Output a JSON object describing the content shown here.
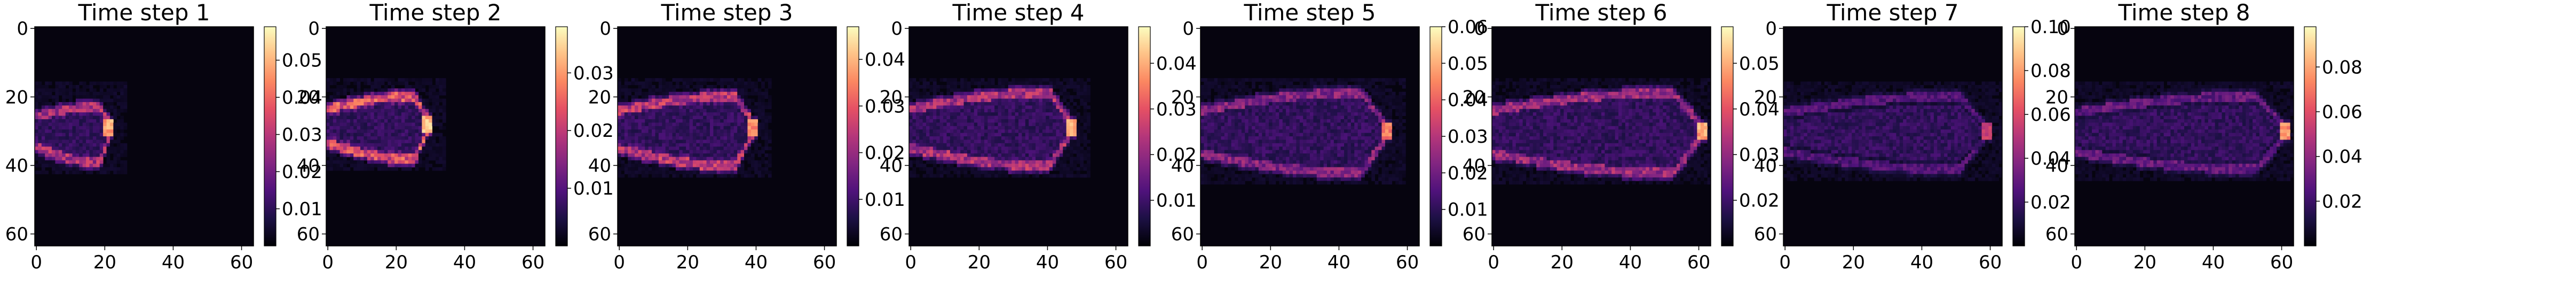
{
  "figure": {
    "colormap": "magma",
    "colormap_stops": [
      "#000004",
      "#1c1044",
      "#4f127b",
      "#812581",
      "#b5367a",
      "#e55064",
      "#fb8761",
      "#fec287",
      "#fcfdbf"
    ]
  },
  "chart_data": [
    {
      "type": "heatmap",
      "title": "Time step 1",
      "x_ticks": [
        "0",
        "20",
        "40",
        "60"
      ],
      "y_ticks": [
        "0",
        "20",
        "40",
        "60"
      ],
      "grid_size": 64,
      "colorbar_ticks": [
        "0.01",
        "0.02",
        "0.03",
        "0.04",
        "0.05"
      ],
      "colorbar_range": [
        0,
        0.059
      ],
      "front": {
        "x0": 0,
        "x1": 22,
        "y": 29,
        "top_half_width": 6,
        "bottom_half_width": 10,
        "intensity": 0.55,
        "tip_intensity": 0.9
      }
    },
    {
      "type": "heatmap",
      "title": "Time step 2",
      "x_ticks": [
        "0",
        "20",
        "40",
        "60"
      ],
      "y_ticks": [
        "0",
        "20",
        "40",
        "60"
      ],
      "grid_size": 64,
      "colorbar_ticks": [
        "0.01",
        "0.02",
        "0.03"
      ],
      "colorbar_range": [
        0,
        0.038
      ],
      "front": {
        "x0": 0,
        "x1": 30,
        "y": 28,
        "top_half_width": 8,
        "bottom_half_width": 10,
        "intensity": 0.7,
        "tip_intensity": 0.95
      }
    },
    {
      "type": "heatmap",
      "title": "Time step 3",
      "x_ticks": [
        "0",
        "20",
        "40",
        "60"
      ],
      "y_ticks": [
        "0",
        "20",
        "40",
        "60"
      ],
      "grid_size": 64,
      "colorbar_ticks": [
        "0.01",
        "0.02",
        "0.03",
        "0.04"
      ],
      "colorbar_range": [
        0,
        0.047
      ],
      "front": {
        "x0": 0,
        "x1": 40,
        "y": 29,
        "top_half_width": 9,
        "bottom_half_width": 11,
        "intensity": 0.6,
        "tip_intensity": 0.85
      }
    },
    {
      "type": "heatmap",
      "title": "Time step 4",
      "x_ticks": [
        "0",
        "20",
        "40",
        "60"
      ],
      "y_ticks": [
        "0",
        "20",
        "40",
        "60"
      ],
      "grid_size": 64,
      "colorbar_ticks": [
        "0.01",
        "0.02",
        "0.03",
        "0.04"
      ],
      "colorbar_range": [
        0,
        0.048
      ],
      "front": {
        "x0": 0,
        "x1": 48,
        "y": 29,
        "top_half_width": 10,
        "bottom_half_width": 11,
        "intensity": 0.55,
        "tip_intensity": 0.9
      }
    },
    {
      "type": "heatmap",
      "title": "Time step 5",
      "x_ticks": [
        "0",
        "20",
        "40",
        "60"
      ],
      "y_ticks": [
        "0",
        "20",
        "40",
        "60"
      ],
      "grid_size": 64,
      "colorbar_ticks": [
        "0.01",
        "0.02",
        "0.03",
        "0.04",
        "0.05",
        "0.06"
      ],
      "colorbar_range": [
        0,
        0.06
      ],
      "front": {
        "x0": 0,
        "x1": 55,
        "y": 30,
        "top_half_width": 11,
        "bottom_half_width": 12,
        "intensity": 0.45,
        "tip_intensity": 0.8
      }
    },
    {
      "type": "heatmap",
      "title": "Time step 6",
      "x_ticks": [
        "0",
        "20",
        "40",
        "60"
      ],
      "y_ticks": [
        "0",
        "20",
        "40",
        "60"
      ],
      "grid_size": 64,
      "colorbar_ticks": [
        "0.02",
        "0.03",
        "0.04",
        "0.05"
      ],
      "colorbar_range": [
        0.01,
        0.058
      ],
      "front": {
        "x0": 0,
        "x1": 62,
        "y": 30,
        "top_half_width": 11,
        "bottom_half_width": 12,
        "intensity": 0.5,
        "tip_intensity": 0.9
      }
    },
    {
      "type": "heatmap",
      "title": "Time step 7",
      "x_ticks": [
        "0",
        "20",
        "40",
        "60"
      ],
      "y_ticks": [
        "0",
        "20",
        "40",
        "60"
      ],
      "grid_size": 64,
      "colorbar_ticks": [
        "0.02",
        "0.04",
        "0.06",
        "0.08",
        "0.10"
      ],
      "colorbar_range": [
        0,
        0.1
      ],
      "front": {
        "x0": 0,
        "x1": 60,
        "y": 30,
        "top_half_width": 10,
        "bottom_half_width": 11,
        "intensity": 0.3,
        "tip_intensity": 0.6
      }
    },
    {
      "type": "heatmap",
      "title": "Time step 8",
      "x_ticks": [
        "0",
        "20",
        "40",
        "60"
      ],
      "y_ticks": [
        "0",
        "20",
        "40",
        "60"
      ],
      "grid_size": 64,
      "colorbar_ticks": [
        "0.02",
        "0.04",
        "0.06",
        "0.08"
      ],
      "colorbar_range": [
        0,
        0.098
      ],
      "front": {
        "x0": 0,
        "x1": 62,
        "y": 30,
        "top_half_width": 10,
        "bottom_half_width": 11,
        "intensity": 0.35,
        "tip_intensity": 0.85
      }
    }
  ]
}
